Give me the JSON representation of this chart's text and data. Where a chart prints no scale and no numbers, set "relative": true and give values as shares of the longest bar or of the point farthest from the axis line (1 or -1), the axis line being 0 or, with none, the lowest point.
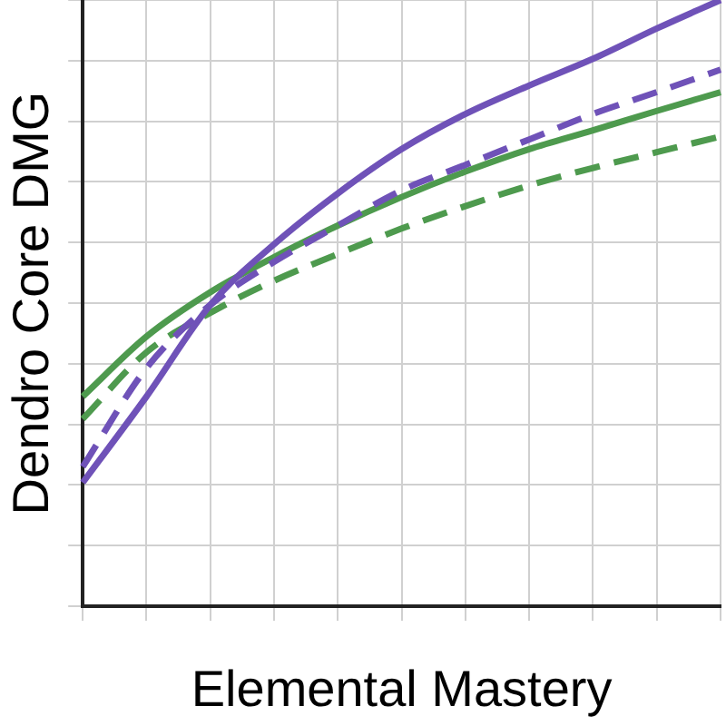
{
  "chart_data": {
    "type": "line",
    "relative": true,
    "xlabel": "Elemental Mastery",
    "ylabel": "Dendro Core DMG",
    "grid": true,
    "marker": "none",
    "legend": false,
    "categories": [
      null,
      null,
      null,
      null,
      null,
      null,
      null,
      null,
      null,
      null,
      null
    ],
    "series": [
      {
        "color": "#6f52b8",
        "line_style": "solid",
        "values": [
          0.204,
          0.346,
          0.497,
          0.597,
          0.681,
          0.754,
          0.812,
          0.859,
          0.903,
          0.953,
          1
        ]
      },
      {
        "color": "#6f52b8",
        "line_style": "dashed",
        "values": [
          0.23,
          0.393,
          0.497,
          0.568,
          0.628,
          0.686,
          0.728,
          0.77,
          0.812,
          0.848,
          0.885
        ]
      },
      {
        "color": "#4e9a4e",
        "line_style": "solid",
        "values": [
          0.346,
          0.445,
          0.518,
          0.576,
          0.628,
          0.675,
          0.717,
          0.754,
          0.785,
          0.817,
          0.848
        ]
      },
      {
        "color": "#4e9a4e",
        "line_style": "dashed",
        "values": [
          0.309,
          0.419,
          0.484,
          0.537,
          0.581,
          0.623,
          0.66,
          0.694,
          0.723,
          0.749,
          0.775
        ]
      }
    ]
  }
}
